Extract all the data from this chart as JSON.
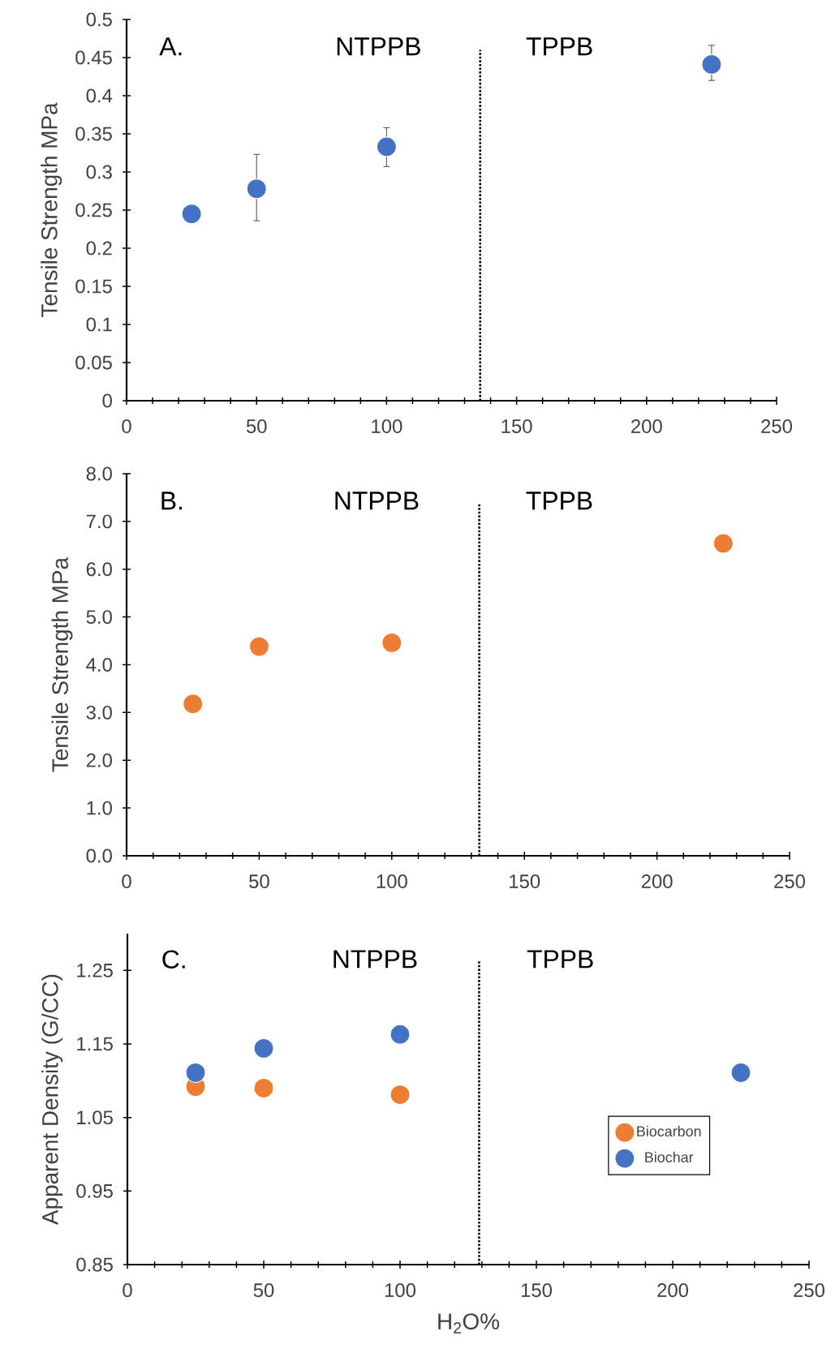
{
  "chart_data": [
    {
      "type": "scatter",
      "ylabel": "Tensile Strength MPa",
      "xlim": [
        0,
        250
      ],
      "ylim": [
        0,
        0.5
      ],
      "xticks": [
        0,
        50,
        100,
        150,
        200,
        250
      ],
      "yticks": [
        0,
        0.05,
        0.1,
        0.15,
        0.2,
        0.25,
        0.3,
        0.35,
        0.4,
        0.45,
        0.5
      ],
      "x": [
        25,
        50,
        100,
        225
      ],
      "values": [
        0.245,
        0.278,
        0.333,
        0.441
      ],
      "errors": [
        null,
        [
          0.236,
          0.323
        ],
        [
          0.307,
          0.358
        ],
        [
          0.42,
          0.466
        ]
      ],
      "color": "#4472c4",
      "ref_lines": [
        {
          "axis": "x",
          "value": 136,
          "line_style": "dotted"
        }
      ],
      "annotations": [
        "A.",
        "NTPPB",
        "TPPB"
      ]
    },
    {
      "type": "scatter",
      "ylabel": "Tensile Strength MPa",
      "xlim": [
        0,
        250
      ],
      "ylim": [
        0,
        8
      ],
      "xticks": [
        0,
        50,
        100,
        150,
        200,
        250
      ],
      "yticks": [
        {
          "value": 0,
          "label": "0.0"
        },
        {
          "value": 1,
          "label": "1.0"
        },
        {
          "value": 2,
          "label": "2.0"
        },
        {
          "value": 3,
          "label": "3.0"
        },
        {
          "value": 4,
          "label": "4.0"
        },
        {
          "value": 5,
          "label": "5.0"
        },
        {
          "value": 6,
          "label": "6.0"
        },
        {
          "value": 7,
          "label": "7.0"
        },
        {
          "value": 8,
          "label": "8.0"
        }
      ],
      "x": [
        25,
        50,
        100,
        225
      ],
      "values": [
        3.18,
        4.38,
        4.46,
        6.54
      ],
      "color": "#ed7d31",
      "ref_lines": [
        {
          "axis": "x",
          "value": 133,
          "line_style": "dotted"
        }
      ],
      "annotations": [
        "B.",
        "NTPPB",
        "TPPB"
      ]
    },
    {
      "type": "scatter",
      "ylabel": "Apparent Density (G/CC)",
      "xlabel": "H$_{2}$O%",
      "xlim": [
        0,
        250
      ],
      "ylim": [
        0.85,
        1.3
      ],
      "xticks": [
        0,
        50,
        100,
        150,
        200,
        250
      ],
      "yticks": [
        0.85,
        0.95,
        1.05,
        1.15,
        1.25
      ],
      "series": [
        {
          "name": "Biocarbon",
          "color": "#ed7d31",
          "x": [
            25,
            50,
            100
          ],
          "values": [
            1.092,
            1.09,
            1.081
          ]
        },
        {
          "name": "Biochar",
          "color": "#4472c4",
          "x": [
            25,
            50,
            100,
            225
          ],
          "values": [
            1.111,
            1.144,
            1.163,
            1.111
          ]
        }
      ],
      "legend": "right",
      "ref_lines": [
        {
          "axis": "x",
          "value": 129,
          "line_style": "dotted"
        }
      ],
      "annotations": [
        "C.",
        "NTPPB",
        "TPPB"
      ]
    }
  ]
}
